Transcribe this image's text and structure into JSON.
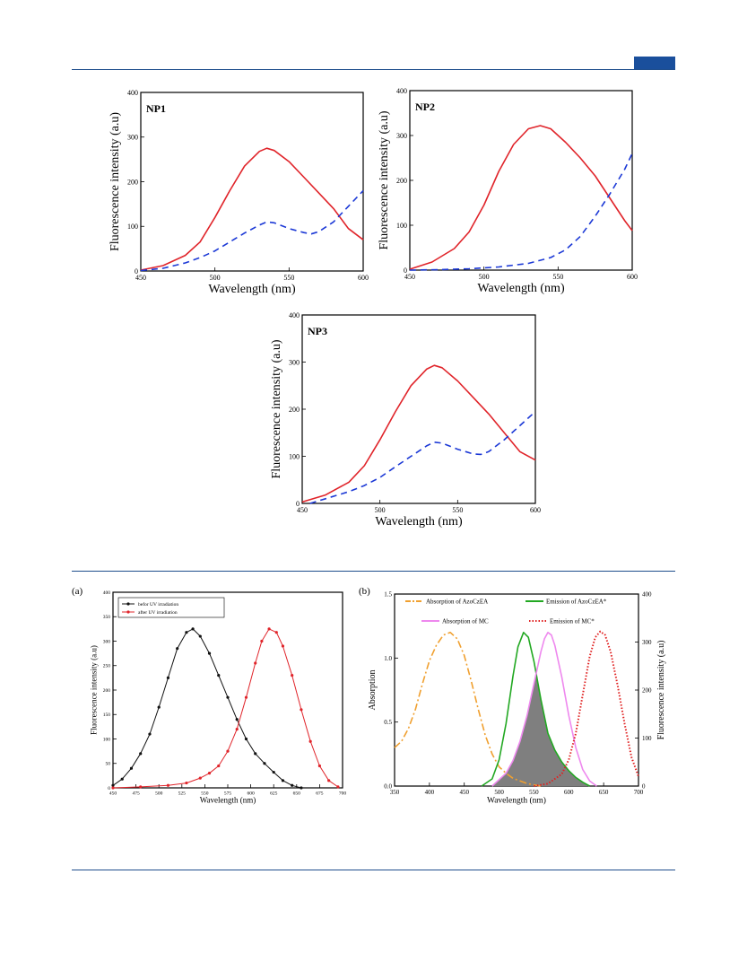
{
  "chart_data": [
    {
      "id": "np1",
      "type": "line",
      "panel_label": "NP1",
      "xlabel": "Wavelength (nm)",
      "ylabel": "Fluorescence intensity (a.u)",
      "xlim": [
        450,
        600
      ],
      "ylim": [
        0,
        400
      ],
      "xticks": [
        450,
        500,
        550,
        600
      ],
      "yticks": [
        0,
        100,
        200,
        300,
        400
      ],
      "series": [
        {
          "color": "#e0242a",
          "style": "solid",
          "x": [
            450,
            465,
            480,
            490,
            500,
            510,
            520,
            530,
            535,
            540,
            550,
            560,
            570,
            580,
            590,
            600
          ],
          "y": [
            2,
            12,
            35,
            65,
            120,
            180,
            235,
            268,
            275,
            270,
            245,
            210,
            175,
            140,
            95,
            70
          ]
        },
        {
          "color": "#1c39d6",
          "style": "dashed",
          "x": [
            450,
            465,
            480,
            490,
            500,
            510,
            520,
            530,
            535,
            540,
            550,
            560,
            565,
            570,
            580,
            590,
            600
          ],
          "y": [
            1,
            6,
            18,
            30,
            45,
            65,
            85,
            103,
            110,
            108,
            95,
            86,
            83,
            88,
            110,
            145,
            180
          ]
        }
      ]
    },
    {
      "id": "np2",
      "type": "line",
      "panel_label": "NP2",
      "xlabel": "Wavelength (nm)",
      "ylabel": "Fluorescence intensity (a.u)",
      "xlim": [
        450,
        600
      ],
      "ylim": [
        0,
        400
      ],
      "xticks": [
        450,
        500,
        550,
        600
      ],
      "yticks": [
        0,
        100,
        200,
        300,
        400
      ],
      "series": [
        {
          "color": "#e0242a",
          "style": "solid",
          "x": [
            450,
            465,
            480,
            490,
            500,
            510,
            520,
            530,
            538,
            545,
            555,
            565,
            575,
            585,
            595,
            600
          ],
          "y": [
            2,
            18,
            48,
            85,
            145,
            220,
            280,
            315,
            322,
            315,
            285,
            250,
            210,
            160,
            110,
            88
          ]
        },
        {
          "color": "#1c39d6",
          "style": "dashed",
          "x": [
            450,
            470,
            490,
            510,
            530,
            545,
            555,
            565,
            575,
            585,
            595,
            600
          ],
          "y": [
            0,
            1,
            3,
            7,
            15,
            28,
            45,
            75,
            120,
            170,
            225,
            260
          ]
        }
      ]
    },
    {
      "id": "np3",
      "type": "line",
      "panel_label": "NP3",
      "xlabel": "Wavelength (nm)",
      "ylabel": "Fluorescence intensity (a.u)",
      "xlim": [
        450,
        600
      ],
      "ylim": [
        0,
        400
      ],
      "xticks": [
        450,
        500,
        550,
        600
      ],
      "yticks": [
        0,
        100,
        200,
        300,
        400
      ],
      "series": [
        {
          "color": "#e0242a",
          "style": "solid",
          "x": [
            450,
            465,
            480,
            490,
            500,
            510,
            520,
            530,
            535,
            540,
            550,
            560,
            570,
            580,
            590,
            600
          ],
          "y": [
            3,
            18,
            45,
            80,
            135,
            195,
            250,
            285,
            293,
            288,
            260,
            225,
            190,
            150,
            110,
            92
          ]
        },
        {
          "color": "#1c39d6",
          "style": "dashed",
          "x": [
            455,
            465,
            480,
            490,
            500,
            510,
            520,
            530,
            535,
            540,
            550,
            560,
            565,
            570,
            580,
            590,
            600
          ],
          "y": [
            0,
            10,
            25,
            38,
            55,
            78,
            100,
            122,
            130,
            128,
            115,
            105,
            104,
            110,
            135,
            165,
            195
          ]
        }
      ]
    },
    {
      "id": "a",
      "type": "line",
      "panel_label": "(a)",
      "xlabel": "Wavelength (nm)",
      "ylabel": "Fluorescence intensity (a.u)",
      "xlim": [
        450,
        700
      ],
      "ylim": [
        0,
        400
      ],
      "xticks": [
        450,
        475,
        500,
        525,
        550,
        575,
        600,
        625,
        650,
        675,
        700
      ],
      "yticks": [
        0,
        50,
        100,
        150,
        200,
        250,
        300,
        350,
        400
      ],
      "legend": {
        "position": "top-left"
      },
      "series": [
        {
          "name": "befor UV irradiation",
          "color": "#111111",
          "style": "solid-dots",
          "x": [
            450,
            460,
            470,
            480,
            490,
            500,
            510,
            520,
            530,
            537,
            545,
            555,
            565,
            575,
            585,
            595,
            605,
            615,
            625,
            635,
            645,
            655
          ],
          "y": [
            5,
            18,
            40,
            70,
            110,
            165,
            225,
            285,
            318,
            325,
            310,
            275,
            230,
            185,
            140,
            100,
            70,
            50,
            32,
            15,
            5,
            0
          ]
        },
        {
          "name": "after UV irradiation",
          "color": "#e0242a",
          "style": "solid-dots",
          "x": [
            450,
            480,
            510,
            530,
            545,
            555,
            565,
            575,
            585,
            595,
            605,
            612,
            620,
            628,
            635,
            645,
            655,
            665,
            675,
            685,
            695
          ],
          "y": [
            0,
            2,
            5,
            10,
            20,
            30,
            45,
            75,
            120,
            185,
            255,
            300,
            325,
            318,
            290,
            230,
            160,
            95,
            45,
            15,
            2
          ]
        }
      ]
    },
    {
      "id": "b",
      "type": "line",
      "panel_label": "(b)",
      "xlabel": "Wavelength (nm)",
      "ylabel": "Absorption",
      "ylabel_right": "Fluorescence intensity (a.u)",
      "xlim": [
        350,
        700
      ],
      "ylim": [
        0,
        1.5
      ],
      "ylim_right": [
        0,
        400
      ],
      "xticks": [
        350,
        400,
        450,
        500,
        550,
        600,
        650,
        700
      ],
      "yticks": [
        0.0,
        0.5,
        1.0,
        1.5
      ],
      "yticks_right": [
        0,
        100,
        200,
        300,
        400
      ],
      "legend": {
        "position": "top"
      },
      "overlap_fill": "#7f7f7f",
      "series": [
        {
          "name": "Absorption of AzoCzEA",
          "color": "#f0a030",
          "style": "dashdot",
          "x": [
            350,
            360,
            370,
            380,
            390,
            400,
            410,
            420,
            430,
            440,
            450,
            460,
            470,
            480,
            490,
            500,
            510,
            520,
            530,
            540,
            550,
            560
          ],
          "y": [
            0.3,
            0.35,
            0.45,
            0.6,
            0.8,
            0.98,
            1.1,
            1.18,
            1.2,
            1.15,
            1.02,
            0.82,
            0.6,
            0.4,
            0.25,
            0.15,
            0.1,
            0.06,
            0.04,
            0.02,
            0.01,
            0.0
          ]
        },
        {
          "name": "Emission of AzoCzEA*",
          "color": "#22a822",
          "style": "solid",
          "x": [
            475,
            490,
            500,
            510,
            520,
            527,
            535,
            542,
            550,
            560,
            570,
            580,
            590,
            600,
            610,
            620,
            630
          ],
          "y": [
            0,
            15,
            55,
            130,
            230,
            290,
            320,
            310,
            260,
            180,
            110,
            75,
            50,
            32,
            18,
            8,
            0
          ]
        },
        {
          "name": "Absorption of MC",
          "color": "#ee88ee",
          "style": "solid",
          "x": [
            490,
            510,
            520,
            530,
            540,
            550,
            560,
            565,
            570,
            575,
            580,
            590,
            600,
            610,
            620,
            630,
            640
          ],
          "y": [
            0.0,
            0.1,
            0.2,
            0.35,
            0.55,
            0.8,
            1.05,
            1.15,
            1.2,
            1.18,
            1.1,
            0.85,
            0.55,
            0.3,
            0.13,
            0.04,
            0.0
          ]
        },
        {
          "name": "Emission of  MC*",
          "color": "#e02020",
          "style": "dotted",
          "x": [
            550,
            570,
            590,
            600,
            610,
            620,
            630,
            638,
            645,
            652,
            660,
            670,
            680,
            690,
            700
          ],
          "y": [
            0,
            5,
            25,
            55,
            110,
            190,
            270,
            310,
            322,
            315,
            280,
            210,
            130,
            60,
            20
          ]
        }
      ]
    }
  ]
}
